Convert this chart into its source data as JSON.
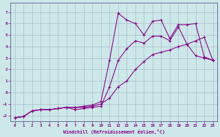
{
  "xlabel": "Windchill (Refroidissement éolien,°C)",
  "bg_color": "#cce8e8",
  "grid_color": "#aabbcc",
  "line_color": "#880088",
  "xlim": [
    -0.5,
    23.5
  ],
  "ylim": [
    -2.5,
    7.8
  ],
  "xticks": [
    0,
    1,
    2,
    3,
    4,
    5,
    6,
    7,
    8,
    9,
    10,
    11,
    12,
    13,
    14,
    15,
    16,
    17,
    18,
    19,
    20,
    21,
    22,
    23
  ],
  "yticks": [
    -2,
    -1,
    0,
    1,
    2,
    3,
    4,
    5,
    6,
    7
  ],
  "line1_x": [
    0,
    1,
    2,
    3,
    4,
    5,
    6,
    7,
    8,
    9,
    10,
    11,
    12,
    13,
    14,
    15,
    16,
    17,
    18,
    19,
    20,
    21,
    22,
    23
  ],
  "line1_y": [
    -2.2,
    -2.1,
    -1.6,
    -1.5,
    -1.5,
    -1.4,
    -1.3,
    -1.3,
    -1.2,
    -1.1,
    -0.8,
    2.8,
    6.9,
    6.3,
    6.0,
    5.0,
    6.2,
    6.3,
    4.7,
    5.9,
    5.9,
    6.0,
    3.1,
    2.8
  ],
  "line2_x": [
    0,
    1,
    2,
    3,
    4,
    5,
    6,
    7,
    8,
    9,
    10,
    11,
    12,
    13,
    14,
    15,
    16,
    17,
    18,
    19,
    20,
    21,
    22,
    23
  ],
  "line2_y": [
    -2.2,
    -2.1,
    -1.6,
    -1.5,
    -1.5,
    -1.4,
    -1.3,
    -1.5,
    -1.4,
    -1.3,
    -1.2,
    0.5,
    2.8,
    3.8,
    4.5,
    4.3,
    4.9,
    4.9,
    4.5,
    5.7,
    4.2,
    3.2,
    3.0,
    2.8
  ],
  "line3_x": [
    0,
    1,
    2,
    3,
    4,
    5,
    6,
    7,
    8,
    9,
    10,
    11,
    12,
    13,
    14,
    15,
    16,
    17,
    18,
    19,
    20,
    21,
    22,
    23
  ],
  "line3_y": [
    -2.2,
    -2.1,
    -1.6,
    -1.5,
    -1.5,
    -1.4,
    -1.3,
    -1.3,
    -1.3,
    -1.2,
    -1.0,
    -0.5,
    0.5,
    1.0,
    2.0,
    2.7,
    3.3,
    3.5,
    3.7,
    4.0,
    4.2,
    4.5,
    4.8,
    2.8
  ]
}
